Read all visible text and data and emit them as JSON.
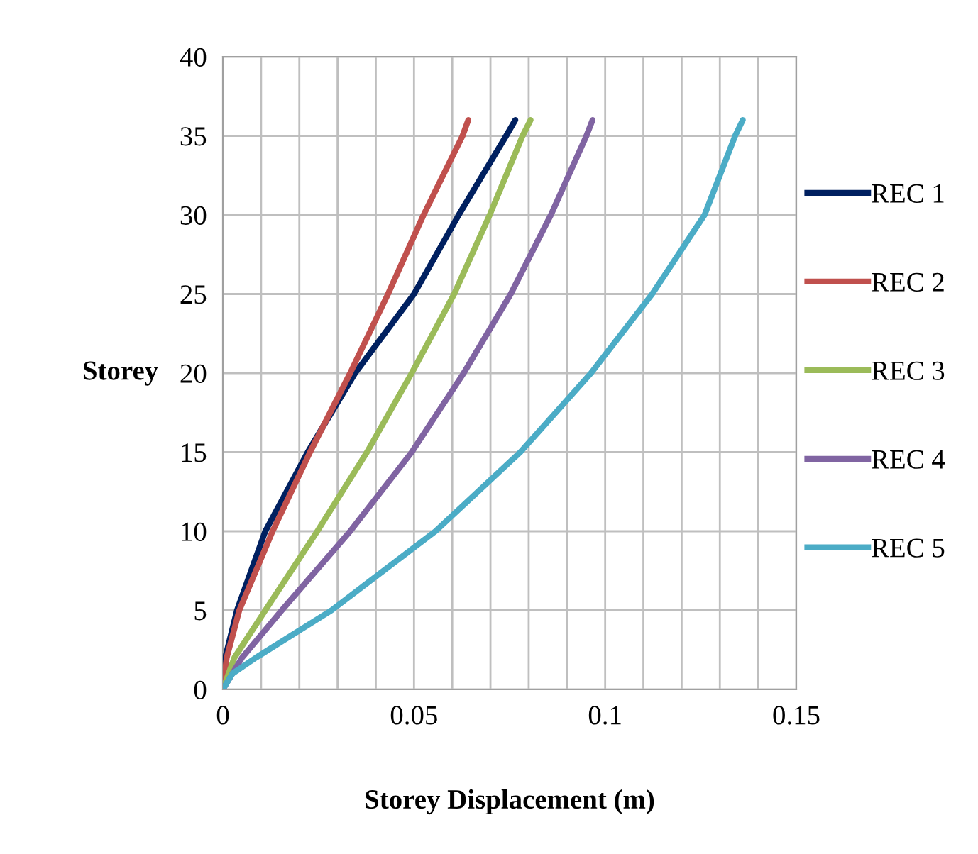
{
  "chart_data": {
    "type": "line",
    "xlabel": "Storey Displacement (m)",
    "ylabel": "Storey",
    "xlim": [
      0,
      0.15
    ],
    "ylim": [
      0,
      40
    ],
    "xticks": [
      0,
      {
        "value": 0.01,
        "label": null
      },
      {
        "value": 0.02,
        "label": null
      },
      {
        "value": 0.03,
        "label": null
      },
      {
        "value": 0.04,
        "label": null
      },
      0.05,
      {
        "value": 0.06,
        "label": null
      },
      {
        "value": 0.07,
        "label": null
      },
      {
        "value": 0.08,
        "label": null
      },
      {
        "value": 0.09,
        "label": null
      },
      0.1,
      {
        "value": 0.11,
        "label": null
      },
      {
        "value": 0.12,
        "label": null
      },
      {
        "value": 0.13,
        "label": null
      },
      {
        "value": 0.14,
        "label": null
      },
      0.15
    ],
    "yticks": [
      0,
      5,
      10,
      15,
      20,
      25,
      30,
      35,
      40
    ],
    "grid": true,
    "legend": "right",
    "marker": "none",
    "line_style": "solid",
    "series": [
      {
        "name": "REC 1",
        "color": "#002060",
        "x": [
          0,
          0.0006,
          0.0037,
          0.0111,
          0.0222,
          0.0346,
          0.05,
          0.0617,
          0.0741,
          0.0765
        ],
        "values": [
          0,
          2,
          5,
          10,
          15,
          20,
          25,
          30,
          35,
          36
        ]
      },
      {
        "name": "REC 2",
        "color": "#c0504d",
        "x": [
          0,
          0.001,
          0.0043,
          0.013,
          0.0228,
          0.0333,
          0.0432,
          0.0525,
          0.0627,
          0.0642
        ],
        "values": [
          0,
          2,
          5,
          10,
          15,
          20,
          25,
          30,
          35,
          36
        ]
      },
      {
        "name": "REC 3",
        "color": "#9bbb59",
        "x": [
          0,
          0.003,
          0.0111,
          0.0247,
          0.0377,
          0.0494,
          0.0605,
          0.0698,
          0.0784,
          0.0805
        ],
        "values": [
          0,
          2,
          5,
          10,
          15,
          20,
          25,
          30,
          35,
          36
        ]
      },
      {
        "name": "REC 4",
        "color": "#8064a2",
        "x": [
          0,
          0.005,
          0.0154,
          0.0333,
          0.0494,
          0.063,
          0.0753,
          0.0858,
          0.0951,
          0.0967
        ],
        "values": [
          0,
          2,
          5,
          10,
          15,
          20,
          25,
          30,
          35,
          36
        ]
      },
      {
        "name": "REC 5",
        "color": "#4bacc6",
        "x": [
          0,
          0.0025,
          0.0086,
          0.0284,
          0.0556,
          0.0778,
          0.0963,
          0.1123,
          0.126,
          0.134,
          0.136
        ],
        "values": [
          0,
          1,
          2,
          5,
          10,
          15,
          20,
          25,
          30,
          35,
          36
        ]
      }
    ]
  }
}
